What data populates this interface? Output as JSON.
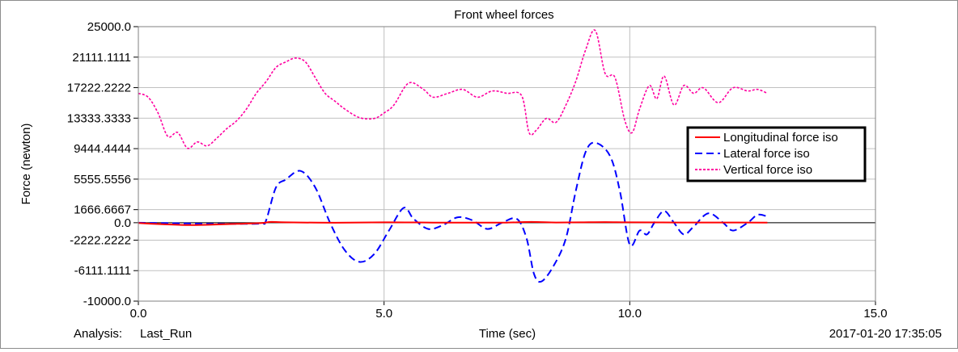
{
  "chart_data": {
    "type": "line",
    "title": "Front wheel forces",
    "xlabel": "Time (sec)",
    "ylabel": "Force (newton)",
    "xlim": [
      0.0,
      15.0
    ],
    "ylim": [
      -10000.0,
      25000.0
    ],
    "x_ticks": [
      0.0,
      5.0,
      10.0,
      15.0
    ],
    "x_tick_labels": [
      "0.0",
      "5.0",
      "10.0",
      "15.0"
    ],
    "y_ticks": [
      25000.0,
      21111.1111,
      17222.2222,
      13333.3333,
      9444.4444,
      5555.5556,
      1666.6667,
      0.0,
      -2222.2222,
      -6111.1111,
      -10000.0
    ],
    "y_tick_labels": [
      "25000.0",
      "21111.1111",
      "17222.2222",
      "13333.3333",
      "9444.4444",
      "5555.5556",
      "1666.6667",
      "0.0",
      "-2222.2222",
      "-6111.1111",
      "-10000.0"
    ],
    "grid": true,
    "legend_position": "right",
    "series": [
      {
        "name": "Longitudinal force iso",
        "color": "#ff0000",
        "dash": "solid",
        "x": [
          0.0,
          0.5,
          1.0,
          1.5,
          2.0,
          2.5,
          2.7,
          3.0,
          4.0,
          5.0,
          6.0,
          7.0,
          7.5,
          8.0,
          8.5,
          9.0,
          9.5,
          10.0,
          11.0,
          12.0,
          12.8
        ],
        "y": [
          -50,
          -200,
          -300,
          -250,
          -150,
          -50,
          100,
          50,
          0,
          50,
          20,
          20,
          20,
          100,
          30,
          50,
          80,
          50,
          30,
          30,
          20
        ]
      },
      {
        "name": "Lateral force iso",
        "color": "#0000ff",
        "dash": "dashed",
        "x": [
          0.0,
          0.5,
          1.0,
          1.5,
          2.0,
          2.5,
          2.6,
          2.8,
          3.0,
          3.3,
          3.6,
          3.9,
          4.2,
          4.5,
          4.8,
          5.1,
          5.4,
          5.6,
          5.9,
          6.2,
          6.5,
          6.8,
          7.1,
          7.4,
          7.7,
          7.9,
          8.05,
          8.2,
          8.45,
          8.7,
          8.9,
          9.1,
          9.3,
          9.6,
          9.8,
          10.0,
          10.2,
          10.35,
          10.5,
          10.7,
          10.9,
          11.1,
          11.3,
          11.6,
          11.9,
          12.1,
          12.4,
          12.6,
          12.8
        ],
        "y": [
          0,
          -50,
          -100,
          -150,
          -150,
          -100,
          300,
          4500,
          5500,
          6600,
          4500,
          0,
          -3500,
          -5000,
          -4000,
          -1000,
          1900,
          500,
          -800,
          -300,
          700,
          300,
          -800,
          0,
          500,
          -2000,
          -6500,
          -7500,
          -5500,
          -2000,
          4000,
          9000,
          10200,
          8500,
          4000,
          -2800,
          -1000,
          -1500,
          0,
          1500,
          0,
          -1500,
          -500,
          1200,
          0,
          -1000,
          0,
          1000,
          800
        ]
      },
      {
        "name": "Vertical force iso",
        "color": "#ff00a0",
        "dash": "dotted",
        "x": [
          0.0,
          0.2,
          0.4,
          0.6,
          0.8,
          1.0,
          1.2,
          1.4,
          1.6,
          1.8,
          2.0,
          2.2,
          2.4,
          2.6,
          2.8,
          3.0,
          3.2,
          3.4,
          3.6,
          3.8,
          4.0,
          4.2,
          4.5,
          4.8,
          5.0,
          5.2,
          5.5,
          5.8,
          6.0,
          6.3,
          6.6,
          6.9,
          7.2,
          7.5,
          7.8,
          7.95,
          8.1,
          8.3,
          8.5,
          8.7,
          8.9,
          9.1,
          9.3,
          9.5,
          9.7,
          9.9,
          10.05,
          10.2,
          10.4,
          10.55,
          10.7,
          10.9,
          11.1,
          11.3,
          11.5,
          11.8,
          12.1,
          12.4,
          12.6,
          12.8
        ],
        "y": [
          16500,
          16000,
          14000,
          11000,
          11500,
          9500,
          10300,
          9800,
          10800,
          12000,
          13000,
          14500,
          16500,
          18000,
          19800,
          20500,
          21000,
          20500,
          18500,
          16500,
          15500,
          14500,
          13400,
          13300,
          14000,
          15000,
          17800,
          17000,
          16000,
          16500,
          17000,
          16000,
          16800,
          16500,
          16200,
          11500,
          11800,
          13300,
          12800,
          15000,
          18000,
          22000,
          24500,
          19000,
          18500,
          13000,
          11500,
          14500,
          17500,
          15800,
          18700,
          15000,
          17500,
          16500,
          17200,
          15300,
          17200,
          16800,
          17000,
          16500
        ]
      }
    ],
    "footer": {
      "analysis_label": "Analysis:",
      "analysis_value": "Last_Run",
      "timestamp": "2017-01-20 17:35:05"
    }
  }
}
